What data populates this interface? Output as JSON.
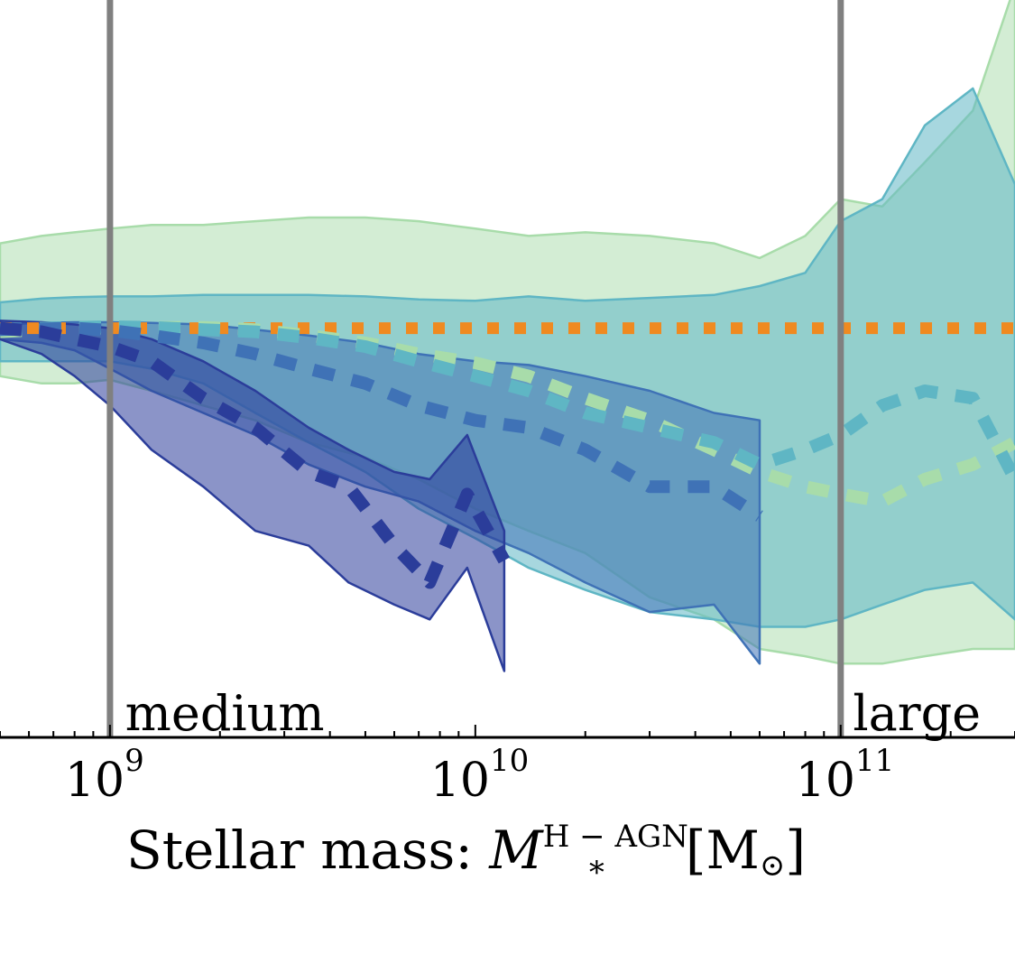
{
  "chart_data": {
    "type": "area",
    "title": "",
    "xlabel": {
      "prefix": "Stellar mass: ",
      "symbol": "M",
      "subscript": "*",
      "superscript": "H − AGN",
      "unit_open": "[M",
      "unit_symbol": "⊙",
      "unit_close": "]"
    },
    "x_scale": "log",
    "xlim": [
      500000000.0,
      300000000000.0
    ],
    "ylim": [
      0,
      1
    ],
    "grid": false,
    "x_ticks": [
      {
        "value": 1000000000.0,
        "base": "10",
        "exp": "9"
      },
      {
        "value": 10000000000.0,
        "base": "10",
        "exp": "10"
      },
      {
        "value": 100000000000.0,
        "base": "10",
        "exp": "11"
      }
    ],
    "vertical_lines": [
      {
        "x": 1000000000.0,
        "color": "#808080"
      },
      {
        "x": 100000000000.0,
        "color": "#808080"
      }
    ],
    "region_labels": [
      {
        "text": "medium",
        "x": 1100000000.0
      },
      {
        "text": "large",
        "x": 108000000000.0
      }
    ],
    "reference_line": {
      "y": 0.555,
      "color": "#ef8a20",
      "style": "dotted"
    },
    "series": [
      {
        "color": "#a8dcaa",
        "fill_opacity": 0.5,
        "x": [
          500000000.0,
          650000000.0,
          800000000.0,
          1000000000.0,
          1300000000.0,
          1800000000.0,
          2500000000.0,
          3500000000.0,
          5000000000.0,
          7000000000.0,
          10000000000.0,
          14000000000.0,
          20000000000.0,
          30000000000.0,
          45000000000.0,
          60000000000.0,
          80000000000.0,
          100000000000.0,
          130000000000.0,
          170000000000.0,
          230000000000.0,
          300000000000.0
        ],
        "upper": [
          0.67,
          0.68,
          0.685,
          0.69,
          0.695,
          0.695,
          0.7,
          0.705,
          0.705,
          0.7,
          0.69,
          0.68,
          0.685,
          0.68,
          0.67,
          0.65,
          0.68,
          0.73,
          0.72,
          0.78,
          0.85,
          1.02
        ],
        "median": [
          0.55,
          0.553,
          0.555,
          0.555,
          0.556,
          0.556,
          0.553,
          0.545,
          0.535,
          0.52,
          0.508,
          0.49,
          0.46,
          0.43,
          0.39,
          0.36,
          0.34,
          0.33,
          0.32,
          0.35,
          0.37,
          0.4
        ],
        "lower": [
          0.49,
          0.48,
          0.48,
          0.485,
          0.47,
          0.45,
          0.43,
          0.4,
          0.38,
          0.35,
          0.31,
          0.28,
          0.25,
          0.19,
          0.16,
          0.12,
          0.11,
          0.1,
          0.1,
          0.11,
          0.12,
          0.12
        ]
      },
      {
        "color": "#5fb6c4",
        "fill_opacity": 0.55,
        "x": [
          500000000.0,
          650000000.0,
          800000000.0,
          1000000000.0,
          1300000000.0,
          1800000000.0,
          2500000000.0,
          3500000000.0,
          5000000000.0,
          7000000000.0,
          10000000000.0,
          14000000000.0,
          20000000000.0,
          30000000000.0,
          45000000000.0,
          60000000000.0,
          80000000000.0,
          100000000000.0,
          130000000000.0,
          170000000000.0,
          230000000000.0,
          300000000000.0
        ],
        "upper": [
          0.59,
          0.595,
          0.597,
          0.598,
          0.598,
          0.6,
          0.6,
          0.6,
          0.598,
          0.594,
          0.592,
          0.598,
          0.592,
          0.596,
          0.6,
          0.612,
          0.63,
          0.7,
          0.73,
          0.83,
          0.88,
          0.75
        ],
        "median": [
          0.553,
          0.555,
          0.556,
          0.557,
          0.556,
          0.553,
          0.55,
          0.542,
          0.53,
          0.51,
          0.49,
          0.47,
          0.44,
          0.42,
          0.4,
          0.37,
          0.39,
          0.41,
          0.45,
          0.47,
          0.46,
          0.35
        ],
        "lower": [
          0.51,
          0.51,
          0.51,
          0.51,
          0.5,
          0.48,
          0.44,
          0.4,
          0.36,
          0.31,
          0.27,
          0.23,
          0.2,
          0.17,
          0.16,
          0.15,
          0.15,
          0.16,
          0.18,
          0.2,
          0.21,
          0.16
        ]
      },
      {
        "color": "#3f72b6",
        "fill_opacity": 0.55,
        "x": [
          500000000.0,
          650000000.0,
          800000000.0,
          1000000000.0,
          1300000000.0,
          1800000000.0,
          2500000000.0,
          3500000000.0,
          5000000000.0,
          7000000000.0,
          10000000000.0,
          14000000000.0,
          20000000000.0,
          30000000000.0,
          45000000000.0,
          60000000000.0
        ],
        "upper": [
          0.56,
          0.562,
          0.563,
          0.563,
          0.562,
          0.56,
          0.553,
          0.545,
          0.535,
          0.52,
          0.51,
          0.505,
          0.49,
          0.47,
          0.44,
          0.43
        ],
        "median": [
          0.553,
          0.554,
          0.555,
          0.552,
          0.545,
          0.535,
          0.52,
          0.5,
          0.48,
          0.45,
          0.43,
          0.42,
          0.39,
          0.34,
          0.34,
          0.3
        ],
        "lower": [
          0.54,
          0.535,
          0.525,
          0.5,
          0.47,
          0.44,
          0.41,
          0.37,
          0.34,
          0.32,
          0.28,
          0.25,
          0.21,
          0.17,
          0.18,
          0.1
        ]
      },
      {
        "color": "#2b3d9a",
        "fill_opacity": 0.55,
        "x": [
          500000000.0,
          650000000.0,
          800000000.0,
          1000000000.0,
          1300000000.0,
          1800000000.0,
          2500000000.0,
          3500000000.0,
          4500000000.0,
          6000000000.0,
          7500000000.0,
          9500000000.0,
          12000000000.0
        ],
        "upper": [
          0.565,
          0.563,
          0.56,
          0.555,
          0.54,
          0.51,
          0.47,
          0.42,
          0.39,
          0.36,
          0.35,
          0.41,
          0.28
        ],
        "median": [
          0.555,
          0.55,
          0.54,
          0.53,
          0.51,
          0.46,
          0.42,
          0.36,
          0.34,
          0.26,
          0.21,
          0.33,
          0.24
        ],
        "lower": [
          0.54,
          0.52,
          0.49,
          0.45,
          0.39,
          0.34,
          0.28,
          0.26,
          0.21,
          0.18,
          0.16,
          0.23,
          0.09
        ]
      }
    ]
  }
}
